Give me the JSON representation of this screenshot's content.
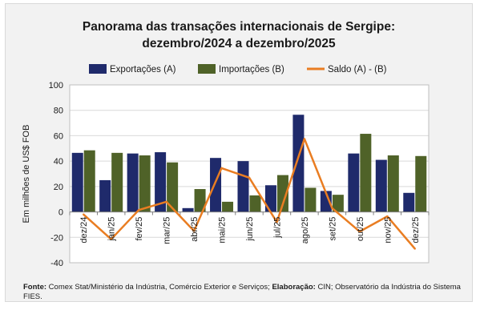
{
  "title_line1": "Panorama  das transações internacionais de Sergipe:",
  "title_line2": "dezembro/2024 a dezembro/2025",
  "footer": {
    "source_label": "Fonte:",
    "source_text": "Comex Stat/Ministério da Indústria, Comércio Exterior e Serviços;",
    "prep_label": "Elaboração:",
    "prep_text": "CIN; Observatório da Indústria do Sistema FIES."
  },
  "chart_data": {
    "type": "bar",
    "title": "Panorama das transações internacionais de Sergipe: dezembro/2024 a dezembro/2025",
    "xlabel": "",
    "ylabel": "Em milhões de US$ FOB",
    "ylim": [
      -40,
      100
    ],
    "yticks": [
      -40,
      -20,
      0,
      20,
      40,
      60,
      80,
      100
    ],
    "categories": [
      "dez/24",
      "jan/25",
      "fev/25",
      "mar/25",
      "abr/25",
      "mai/25",
      "jun/25",
      "jul/25",
      "ago/25",
      "set/25",
      "out/25",
      "nov/25",
      "dez/25"
    ],
    "series": [
      {
        "name": "Exportações (A)",
        "kind": "bar",
        "color": "#1f2a6b",
        "values": [
          46.5,
          25,
          46,
          47,
          3,
          42.5,
          40,
          21,
          76.5,
          16.5,
          46,
          41,
          15
        ]
      },
      {
        "name": "Importações (B)",
        "kind": "bar",
        "color": "#4f6228",
        "values": [
          48.5,
          46.5,
          44.5,
          39,
          18,
          8,
          13,
          29,
          19,
          13.5,
          61.5,
          44.5,
          44
        ]
      },
      {
        "name": "Saldo (A) - (B)",
        "kind": "line",
        "color": "#e97d22",
        "values": [
          -2,
          -21.5,
          1.5,
          8,
          -15,
          34.5,
          27,
          -8,
          57.5,
          3,
          -15.5,
          -3.5,
          -29
        ]
      }
    ],
    "legend_position": "top",
    "grid": true
  }
}
